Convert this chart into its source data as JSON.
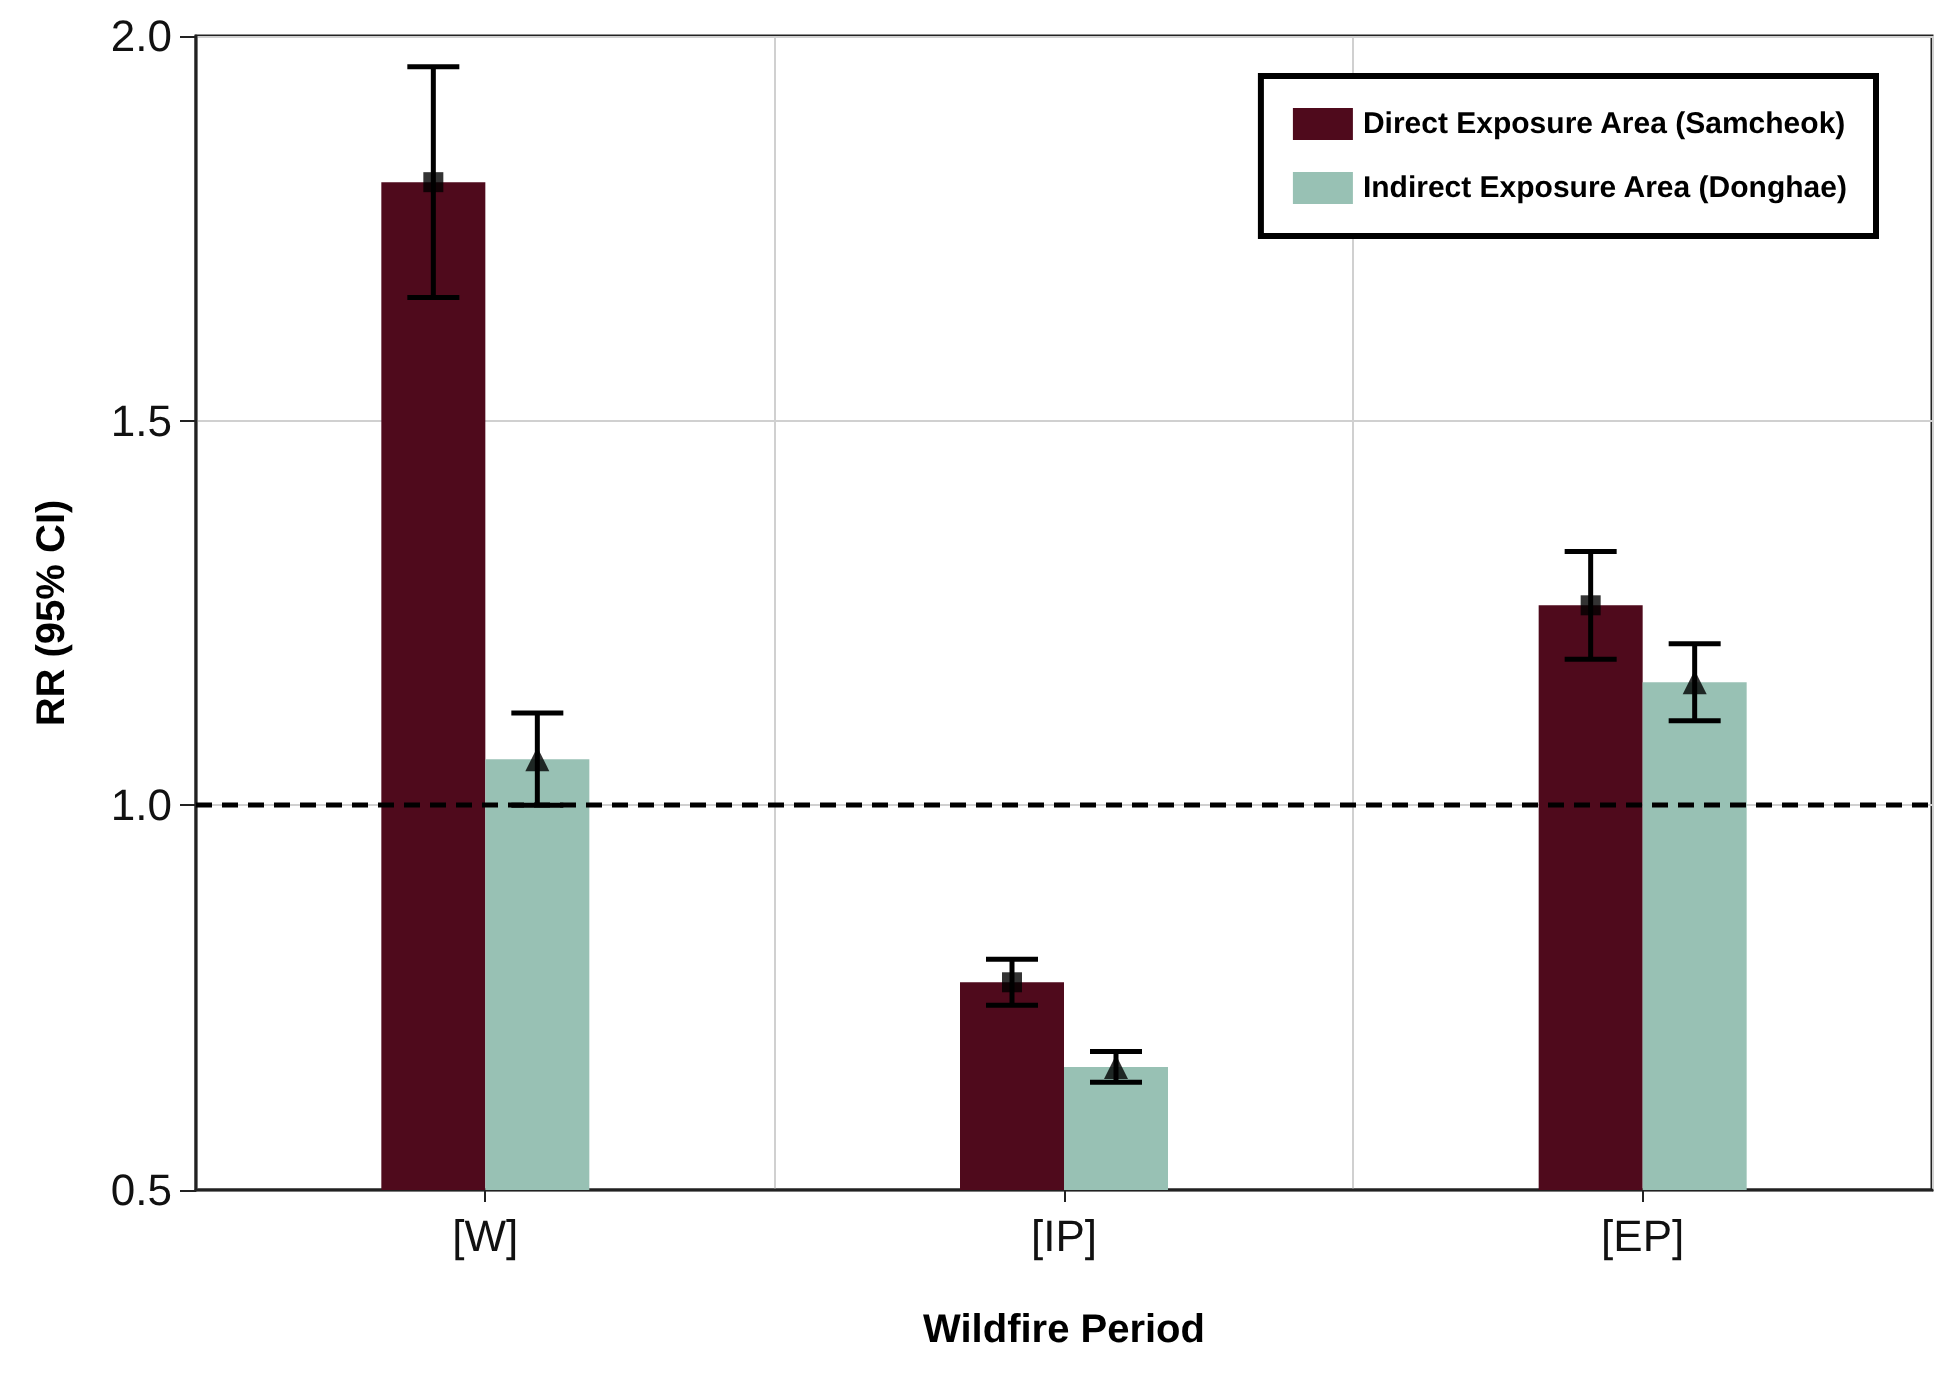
{
  "chart_data": {
    "type": "bar",
    "xlabel": "Wildfire Period",
    "ylabel": "RR (95% CI)",
    "categories": [
      "[W]",
      "[IP]",
      "[EP]"
    ],
    "series": [
      {
        "name": "Direct Exposure Area (Samcheok)",
        "color": "#4f0a1c",
        "values": [
          1.81,
          0.77,
          1.26
        ],
        "errors": [
          [
            1.66,
            1.96
          ],
          [
            0.74,
            0.8
          ],
          [
            1.19,
            1.33
          ]
        ]
      },
      {
        "name": "Indirect Exposure Area (Donghae)",
        "color": "#98c1b4",
        "values": [
          1.06,
          0.66,
          1.16
        ],
        "errors": [
          [
            1.0,
            1.12
          ],
          [
            0.64,
            0.68
          ],
          [
            1.11,
            1.21
          ]
        ]
      },
      {
        "type": "scatter",
        "x": [
          "[W]",
          "[IP]",
          "[EP]"
        ],
        "color": "#000000",
        "values": [
          1.81,
          0.77,
          1.26
        ],
        "marker": "square"
      },
      {
        "type": "scatter",
        "x": [
          "[W]",
          "[IP]",
          "[EP]"
        ],
        "color": "#000000",
        "values": [
          1.06,
          0.66,
          1.16
        ],
        "marker": "triangle"
      }
    ],
    "ylim": [
      0.5,
      2.0
    ],
    "yticks": [
      {
        "value": 0.5,
        "label": "0.5"
      },
      {
        "value": 1.0,
        "label": "1.0"
      },
      {
        "value": 1.5,
        "label": "1.5"
      },
      {
        "value": 2.0,
        "label": "2.0"
      }
    ],
    "ref_lines": [
      {
        "axis": "y",
        "value": 1.0,
        "line_style": "dashed",
        "color": "#000000"
      }
    ],
    "grid": true,
    "legend": "top right"
  }
}
